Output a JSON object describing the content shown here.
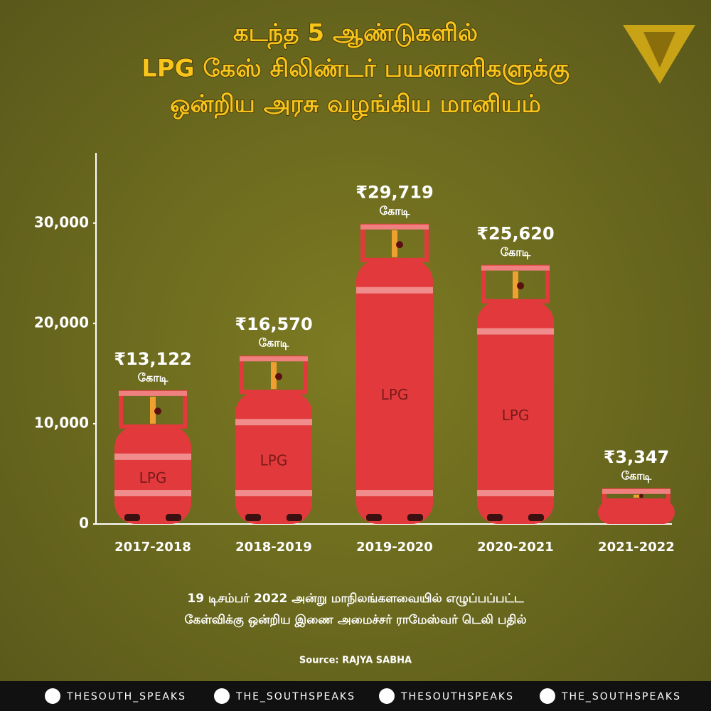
{
  "chart_data": {
    "type": "bar",
    "title": [
      "கடந்த 5 ஆண்டுகளில்",
      "LPG கேஸ் சிலிண்டர் பயனாளிகளுக்கு",
      "ஒன்றிய அரசு வழங்கிய மானியம்"
    ],
    "categories": [
      "2017-2018",
      "2018-2019",
      "2019-2020",
      "2020-2021",
      "2021-2022"
    ],
    "values": [
      13122,
      16570,
      29719,
      25620,
      3347
    ],
    "value_labels": [
      "₹13,122",
      "₹16,570",
      "₹29,719",
      "₹25,620",
      "₹3,347"
    ],
    "value_unit": "கோடி",
    "cylinder_label": "LPG",
    "color": "#e23a3c",
    "ylim": [
      0,
      37000
    ],
    "yticks": [
      0,
      {
        "value": 10000,
        "label": "10,000"
      },
      {
        "value": 20000,
        "label": "20,000"
      },
      {
        "value": 30000,
        "label": "30,000"
      }
    ],
    "notes": [
      "19 டிசம்பர் 2022 அன்று மாநிலங்களவையில் எழுப்பப்பட்ட",
      "கேள்விக்கு ஒன்றிய இணை அமைச்சர் ராமேஸ்வர் டெலி பதில்"
    ],
    "source": "Source: RAJYA SABHA"
  },
  "footer": {
    "socials": [
      "THESOUTH_SPEAKS",
      "THE_SOUTHSPEAKS",
      "THESOUTHSPEAKS",
      "THE_SOUTHSPEAKS"
    ]
  }
}
